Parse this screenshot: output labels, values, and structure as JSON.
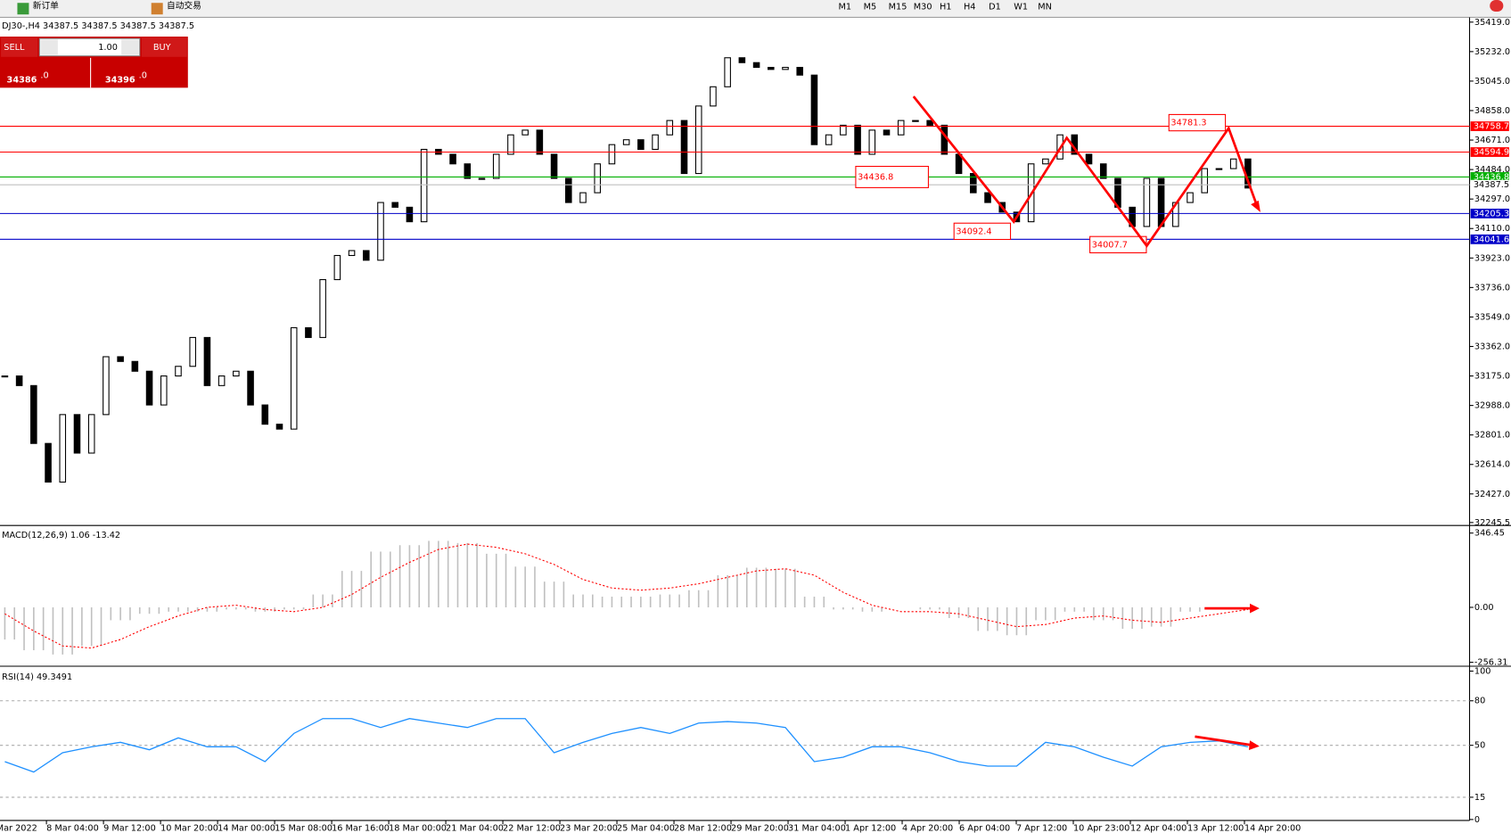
{
  "toolbar": {
    "new_order": "新订单",
    "auto_trade": "自动交易",
    "timeframes": [
      "M1",
      "M5",
      "M15",
      "M30",
      "H1",
      "H4",
      "D1",
      "W1",
      "MN"
    ]
  },
  "trade_panel": {
    "sell": "SELL",
    "buy": "BUY",
    "lot": "1.00",
    "sell_price": "34386",
    "sell_price_big": ".0",
    "buy_price": "34396",
    "buy_price_big": ".0"
  },
  "time_axis": [
    "Mar 2022",
    "8 Mar 04:00",
    "9 Mar 12:00",
    "10 Mar 20:00",
    "14 Mar 00:00",
    "15 Mar 08:00",
    "16 Mar 16:00",
    "18 Mar 00:00",
    "21 Mar 04:00",
    "22 Mar 12:00",
    "23 Mar 20:00",
    "25 Mar 04:00",
    "28 Mar 12:00",
    "29 Mar 20:00",
    "31 Mar 04:00",
    "1 Apr 12:00",
    "4 Apr 20:00",
    "6 Apr 04:00",
    "7 Apr 12:00",
    "10 Apr 23:00",
    "12 Apr 04:00",
    "13 Apr 12:00",
    "14 Apr 20:00"
  ],
  "chart_data": [
    {
      "type": "candlestick",
      "title": "DJ30-,H4  34387.5 34387.5 34387.5 34387.5",
      "values": [
        33175,
        33114,
        32747,
        32502,
        32930,
        32686,
        32930,
        33297,
        33267,
        33205,
        32991,
        33175,
        33236,
        33419,
        33114,
        33175,
        33205,
        32991,
        32869,
        32838,
        33481,
        33419,
        33786,
        33939,
        33970,
        33909,
        34275,
        34245,
        34153,
        34612,
        34581,
        34520,
        34428,
        34428,
        34581,
        34704,
        34734,
        34581,
        34428,
        34275,
        34337,
        34520,
        34642,
        34673,
        34612,
        34704,
        34795,
        34459,
        34887,
        35009,
        35193,
        35162,
        35132,
        35119,
        35132,
        35083,
        34642,
        34704,
        34765,
        34581,
        34734,
        34704,
        34795,
        34795,
        34765,
        34581,
        34459,
        34337,
        34275,
        34214,
        34153,
        34520,
        34551,
        34704,
        34581,
        34520,
        34428,
        34245,
        34123,
        34428,
        34123,
        34275,
        34337,
        34490,
        34490,
        34551,
        34367
      ],
      "color": "#000000",
      "ylim": [
        32227,
        35437
      ],
      "yticks": [
        {
          "value": 35419,
          "label": "35419.0"
        },
        {
          "value": 35232,
          "label": "35232.0"
        },
        {
          "value": 35045,
          "label": "35045.0"
        },
        {
          "value": 34858,
          "label": "34858.0"
        },
        {
          "value": 34671,
          "label": "34671.0"
        },
        {
          "value": 34484,
          "label": "34484.0"
        },
        {
          "value": 34297,
          "label": "34297.0"
        },
        {
          "value": 34110,
          "label": "34110.0"
        },
        {
          "value": 33923,
          "label": "33923.0"
        },
        {
          "value": 33736,
          "label": "33736.0"
        },
        {
          "value": 33549,
          "label": "33549.0"
        },
        {
          "value": 33362,
          "label": "33362.0"
        },
        {
          "value": 33175,
          "label": "33175.0"
        },
        {
          "value": 32988,
          "label": "32988.0"
        },
        {
          "value": 32801,
          "label": "32801.0"
        },
        {
          "value": 32614,
          "label": "32614.0"
        },
        {
          "value": 32427,
          "label": "32427.0"
        },
        {
          "value": 32245.5,
          "label": "32245.5"
        }
      ],
      "price_lines": [
        {
          "value": 34758.7,
          "color": "#ff0000"
        },
        {
          "value": 34594.9,
          "color": "#ff0000"
        },
        {
          "value": 34436.8,
          "color": "#00b000"
        },
        {
          "value": 34387.5,
          "color": "#c0c0c0"
        },
        {
          "value": 34205.3,
          "color": "#0000c8"
        },
        {
          "value": 34041.6,
          "color": "#0000c8"
        }
      ],
      "annotations": [
        34781.3,
        34436.8,
        34092.4,
        34007.7
      ]
    },
    {
      "type": "bar",
      "title": "MACD(12,26,9) 1.06 -13.42",
      "series": [
        {
          "values": [
            -150,
            -200,
            -220,
            -180,
            -60,
            -30,
            -20,
            -20,
            -10,
            -20,
            -10,
            60,
            170,
            260,
            290,
            310,
            300,
            250,
            190,
            120,
            60,
            50,
            50,
            60,
            80,
            150,
            185,
            180,
            50,
            -10,
            -20,
            0,
            -10,
            -50,
            -110,
            -130,
            -60,
            -20,
            -60,
            -100,
            -90,
            -20,
            -5,
            -5
          ],
          "color": "#c0c0c0"
        },
        {
          "values": [
            -30,
            -110,
            -180,
            -190,
            -150,
            -90,
            -40,
            0,
            10,
            -10,
            -20,
            0,
            60,
            140,
            210,
            270,
            295,
            280,
            250,
            200,
            130,
            90,
            80,
            90,
            110,
            140,
            170,
            180,
            150,
            70,
            10,
            -20,
            -20,
            -30,
            -60,
            -90,
            -80,
            -50,
            -40,
            -60,
            -70,
            -50,
            -30,
            -10
          ],
          "color": "#ff0000"
        }
      ],
      "ylim": [
        -270,
        373
      ],
      "yticks": [
        346.45,
        {
          "value": 0,
          "label": "0.00"
        },
        -256.31
      ]
    },
    {
      "type": "line",
      "title": "RSI(14) 49.3491",
      "values": [
        39,
        32,
        45,
        49,
        52,
        47,
        55,
        49,
        49,
        39,
        58,
        68,
        68,
        62,
        68,
        65,
        62,
        68,
        68,
        45,
        52,
        58,
        62,
        58,
        65,
        66,
        65,
        62,
        39,
        42,
        49,
        49,
        45,
        39,
        36,
        36,
        52,
        49,
        42,
        36,
        49,
        52,
        53,
        49
      ],
      "color": "#1e90ff",
      "ylim": [
        0,
        102
      ],
      "yticks": [
        100,
        80,
        50,
        15,
        0
      ],
      "levels": [
        15,
        50,
        80
      ]
    }
  ]
}
